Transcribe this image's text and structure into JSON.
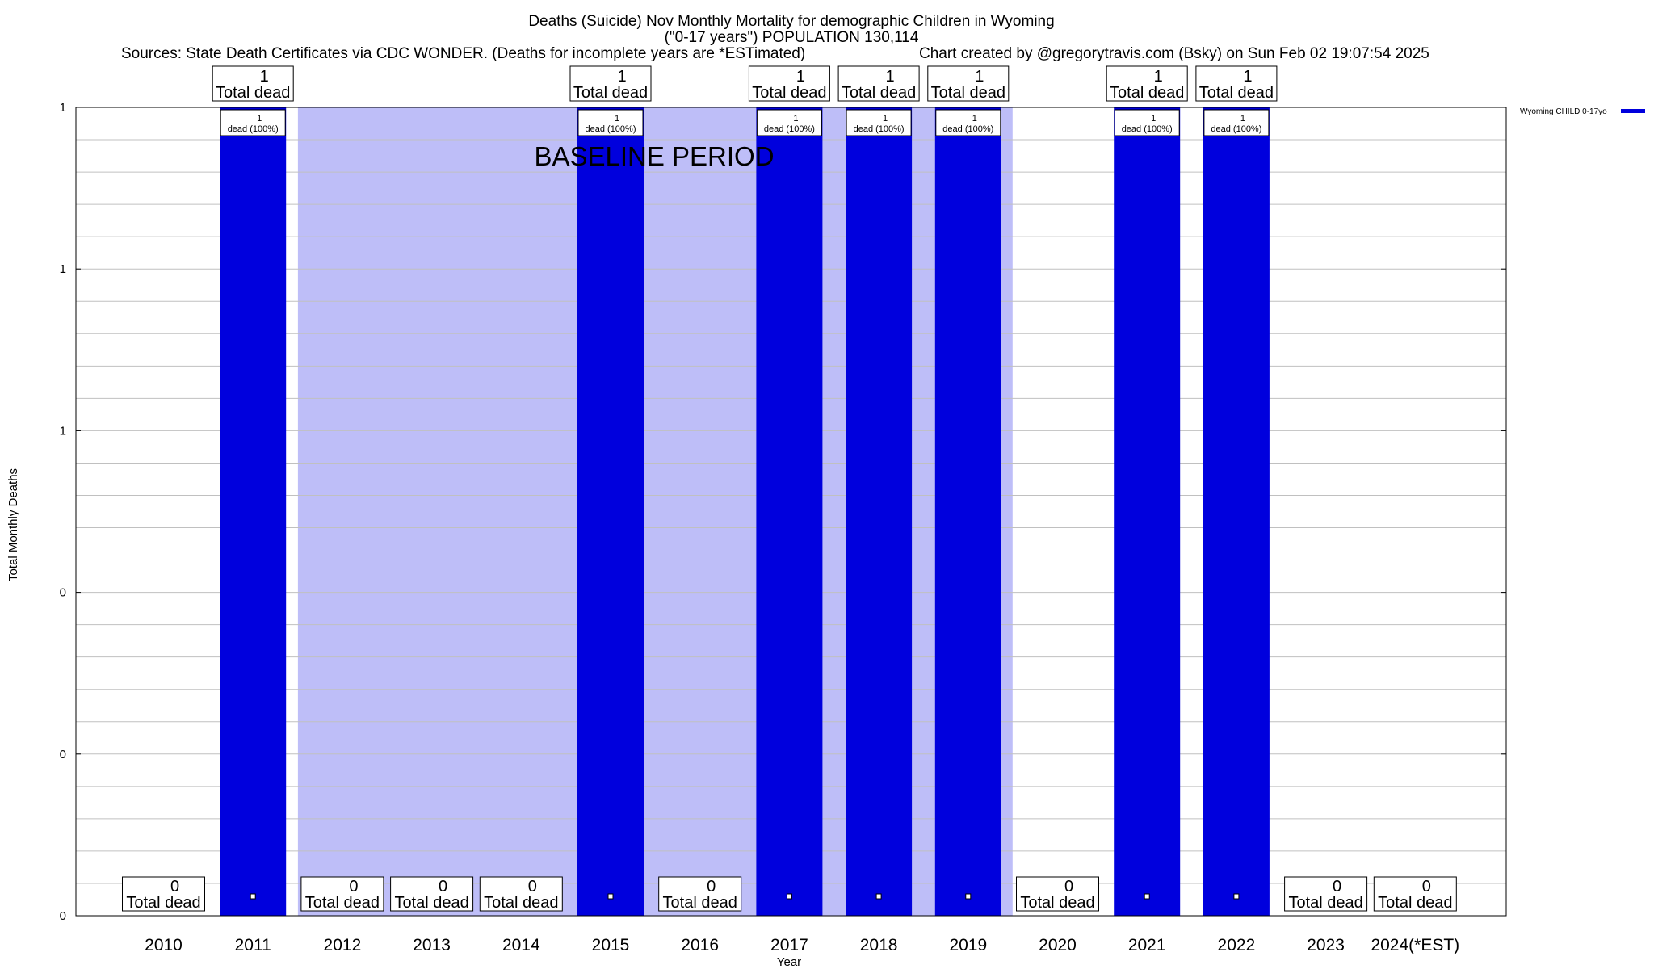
{
  "header": {
    "title_line1": "Deaths (Suicide) Nov Monthly Mortality for demographic Children in Wyoming",
    "title_line2": "(\"0-17 years\") POPULATION 130,114",
    "sources": "Sources: State Death Certificates via CDC WONDER. (Deaths for incomplete years are *ESTimated)",
    "credit": "Chart created by @gregorytravis.com (Bsky) on Sun Feb 02 19:07:54 2025"
  },
  "colors": {
    "bar": "#0000dd",
    "baseline_band": "#bebef8",
    "grid": "#c0c0c0"
  },
  "chart_data": {
    "type": "bar",
    "title": "Deaths (Suicide) Nov Monthly Mortality for demographic Children in Wyoming",
    "xlabel": "Year",
    "ylabel": "Total Monthly Deaths",
    "ylim": [
      0,
      1
    ],
    "y_tick_labels": [
      "0",
      "0",
      "0",
      "1",
      "1",
      "1"
    ],
    "grid": true,
    "legend_position": "top-right",
    "categories": [
      "2010",
      "2011",
      "2012",
      "2013",
      "2014",
      "2015",
      "2016",
      "2017",
      "2018",
      "2019",
      "2020",
      "2021",
      "2022",
      "2023",
      "2024(*EST)"
    ],
    "series": [
      {
        "name": "Wyoming CHILD 0-17yo",
        "values": [
          0,
          1,
          0,
          0,
          0,
          1,
          0,
          1,
          1,
          1,
          0,
          1,
          1,
          0,
          0
        ]
      }
    ],
    "total_label_suffix": "Total dead",
    "bar_label_text": "dead (100%)",
    "baseline": {
      "label": "BASELINE PERIOD",
      "start": "2012",
      "end": "2019"
    }
  }
}
